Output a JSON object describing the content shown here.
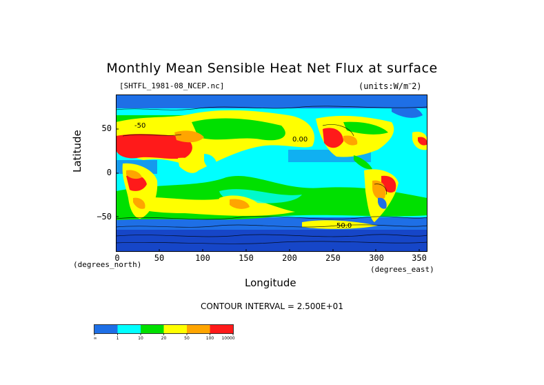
{
  "title": "Monthly Mean Sensible Heat Net Flux at surface",
  "file_label": "[SHTFL_1981-08_NCEP.nc]",
  "units_label": "(units:W/m^-2)",
  "colors": {
    "c1": "#1e6fe6",
    "c2": "#00ffff",
    "c3": "#00e000",
    "c4": "#ffff00",
    "c5": "#ffa500",
    "c6": "#ff1a1a",
    "contour_line": "#000000"
  },
  "map": {
    "projection": "equirectangular",
    "xlabel": "Longitude",
    "ylabel": "Latitude",
    "x_unit_label": "(degrees_east)",
    "y_unit_label": "(degrees_north)",
    "x_ticks": [
      "0",
      "50",
      "100",
      "150",
      "200",
      "250",
      "300",
      "350"
    ],
    "y_ticks": [
      "50",
      "0",
      "−50"
    ],
    "contour_labels": [
      "0.00",
      "50.0",
      "-50"
    ],
    "contour_interval_text": "CONTOUR INTERVAL = 2.500E+01"
  },
  "legend": {
    "labels": [
      "-∞",
      "1",
      "10",
      "20",
      "50",
      "100",
      "10000"
    ]
  },
  "chart_data": {
    "type": "heatmap",
    "title": "Monthly Mean Sensible Heat Net Flux at surface",
    "xlabel": "Longitude",
    "ylabel": "Latitude",
    "xlim": [
      0,
      360
    ],
    "ylim": [
      -90,
      90
    ],
    "x_ticks": [
      0,
      50,
      100,
      150,
      200,
      250,
      300,
      350
    ],
    "y_ticks": [
      50,
      0,
      -50
    ],
    "bins": [
      {
        "range": "-∞ to 1",
        "color": "#1e6fe6"
      },
      {
        "range": "1 to 10",
        "color": "#00ffff"
      },
      {
        "range": "10 to 20",
        "color": "#00e000"
      },
      {
        "range": "20 to 50",
        "color": "#ffff00"
      },
      {
        "range": "50 to 100",
        "color": "#ffa500"
      },
      {
        "range": "100 to 10000",
        "color": "#ff1a1a"
      }
    ],
    "contour_interval": 25
  }
}
